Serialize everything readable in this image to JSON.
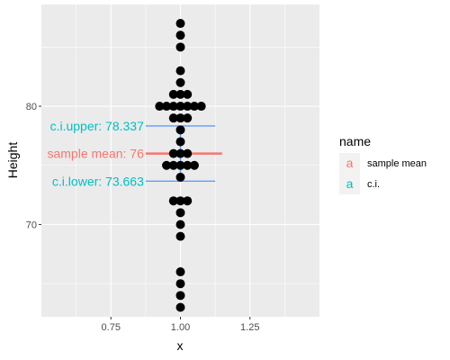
{
  "chart_data": {
    "type": "dotplot",
    "xlabel": "x",
    "ylabel": "Height",
    "xlim": [
      0.5,
      1.5
    ],
    "ylim": [
      62.2,
      88.6
    ],
    "x_ticks": [
      0.75,
      1.0,
      1.25
    ],
    "x_tick_labels": [
      "0.75",
      "1.00",
      "1.25"
    ],
    "y_ticks": [
      70,
      80
    ],
    "y_tick_labels": [
      "70",
      "80"
    ],
    "grid": true,
    "points": [
      {
        "x": 1.0,
        "y": 87.0
      },
      {
        "x": 1.0,
        "y": 86.0
      },
      {
        "x": 1.0,
        "y": 85.0
      },
      {
        "x": 1.0,
        "y": 83.0
      },
      {
        "x": 1.0,
        "y": 82.0
      },
      {
        "x": 0.975,
        "y": 81.0
      },
      {
        "x": 1.0,
        "y": 81.0
      },
      {
        "x": 1.025,
        "y": 81.0
      },
      {
        "x": 0.925,
        "y": 80.0
      },
      {
        "x": 0.95,
        "y": 80.0
      },
      {
        "x": 0.975,
        "y": 80.0
      },
      {
        "x": 1.0,
        "y": 80.0
      },
      {
        "x": 1.025,
        "y": 80.0
      },
      {
        "x": 1.05,
        "y": 80.0
      },
      {
        "x": 1.075,
        "y": 80.0
      },
      {
        "x": 0.975,
        "y": 79.0
      },
      {
        "x": 1.0,
        "y": 79.0
      },
      {
        "x": 1.025,
        "y": 79.0
      },
      {
        "x": 1.0,
        "y": 78.0
      },
      {
        "x": 1.0,
        "y": 77.0
      },
      {
        "x": 0.975,
        "y": 76.0
      },
      {
        "x": 1.0,
        "y": 76.0
      },
      {
        "x": 1.025,
        "y": 76.0
      },
      {
        "x": 0.95,
        "y": 75.0
      },
      {
        "x": 0.975,
        "y": 75.0
      },
      {
        "x": 1.0,
        "y": 75.0
      },
      {
        "x": 1.025,
        "y": 75.0
      },
      {
        "x": 1.05,
        "y": 75.0
      },
      {
        "x": 1.0,
        "y": 74.0
      },
      {
        "x": 0.975,
        "y": 72.0
      },
      {
        "x": 1.0,
        "y": 72.0
      },
      {
        "x": 1.025,
        "y": 72.0
      },
      {
        "x": 1.0,
        "y": 71.0
      },
      {
        "x": 1.0,
        "y": 70.0
      },
      {
        "x": 1.0,
        "y": 69.0
      },
      {
        "x": 1.0,
        "y": 66.0
      },
      {
        "x": 1.0,
        "y": 65.0
      },
      {
        "x": 1.0,
        "y": 64.0
      },
      {
        "x": 1.0,
        "y": 63.0
      }
    ],
    "point_color": "#000000",
    "hlines": [
      {
        "name": "c.i.",
        "y": 78.337,
        "xmin": 0.875,
        "xmax": 1.125,
        "color": "#619CFF"
      },
      {
        "name": "sample mean",
        "y": 76.0,
        "xmin": 0.875,
        "xmax": 1.15,
        "color": "#F8766D"
      },
      {
        "name": "c.i.",
        "y": 73.663,
        "xmin": 0.875,
        "xmax": 1.125,
        "color": "#619CFF"
      }
    ],
    "vline": {
      "x": 1.0,
      "ymin": 73.663,
      "ymax": 78.337,
      "color": "#619CFF"
    },
    "annotations": [
      {
        "text": "c.i.upper: 78.337",
        "x": 0.875,
        "y": 78.337,
        "color": "#00BFC4"
      },
      {
        "text": "sample mean: 76",
        "x": 0.875,
        "y": 76.0,
        "color": "#F8766D"
      },
      {
        "text": "c.i.lower: 73.663",
        "x": 0.875,
        "y": 73.663,
        "color": "#00BFC4"
      }
    ],
    "legend": {
      "title": "name",
      "placement": "right",
      "entries": [
        {
          "key": "a",
          "label": "sample mean",
          "color": "#F8766D"
        },
        {
          "key": "a",
          "label": "c.i.",
          "color": "#00BFC4"
        }
      ]
    },
    "panel_color": "#EBEBEB",
    "grid_color": "#ffffff"
  }
}
